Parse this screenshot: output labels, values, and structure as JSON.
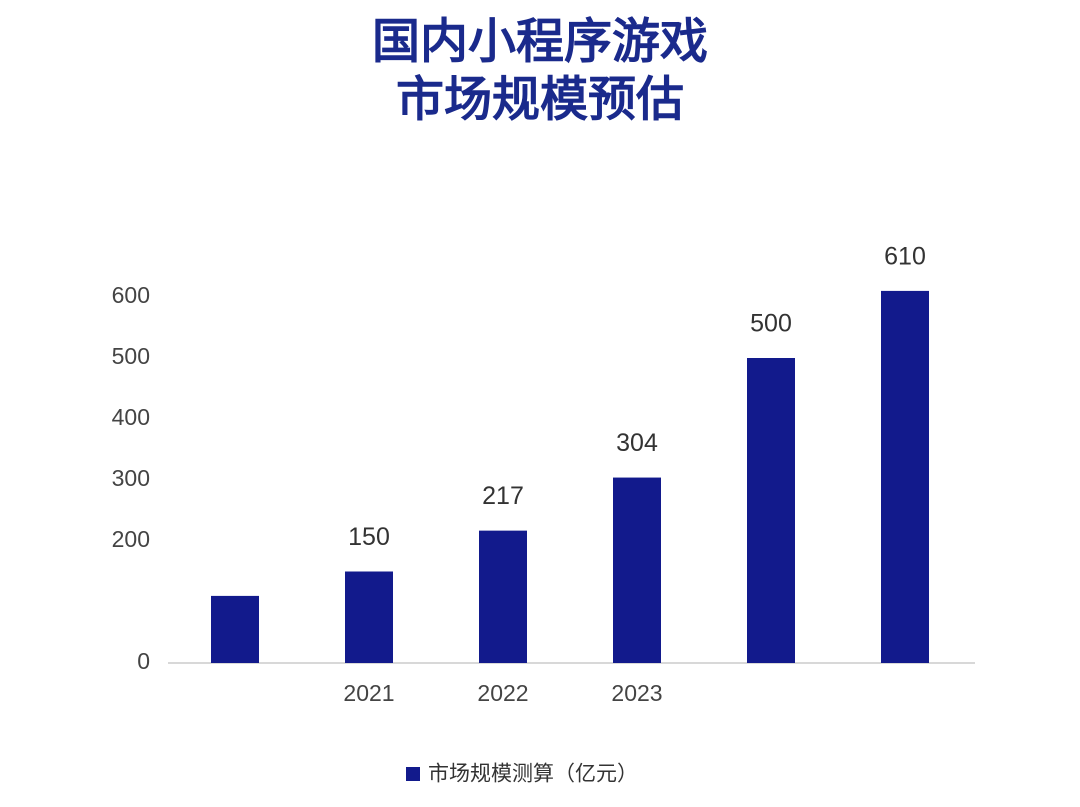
{
  "chart_data": {
    "type": "bar",
    "title": "国内小程序游戏",
    "subtitle": "市场规模预估",
    "categories": [
      null,
      "2021",
      "2022",
      "2023",
      null,
      null
    ],
    "series": [
      {
        "name": "市场规模测算（亿元）",
        "color": "#121a8c",
        "values": [
          110,
          150,
          217,
          304,
          500,
          610
        ],
        "value_labels": [
          null,
          "150",
          "217",
          "304",
          "500",
          "610"
        ]
      }
    ],
    "ylim": [
      0,
      700
    ],
    "yticks": [
      0,
      200,
      300,
      400,
      500,
      600
    ],
    "grid": false,
    "legend": "bottom"
  }
}
